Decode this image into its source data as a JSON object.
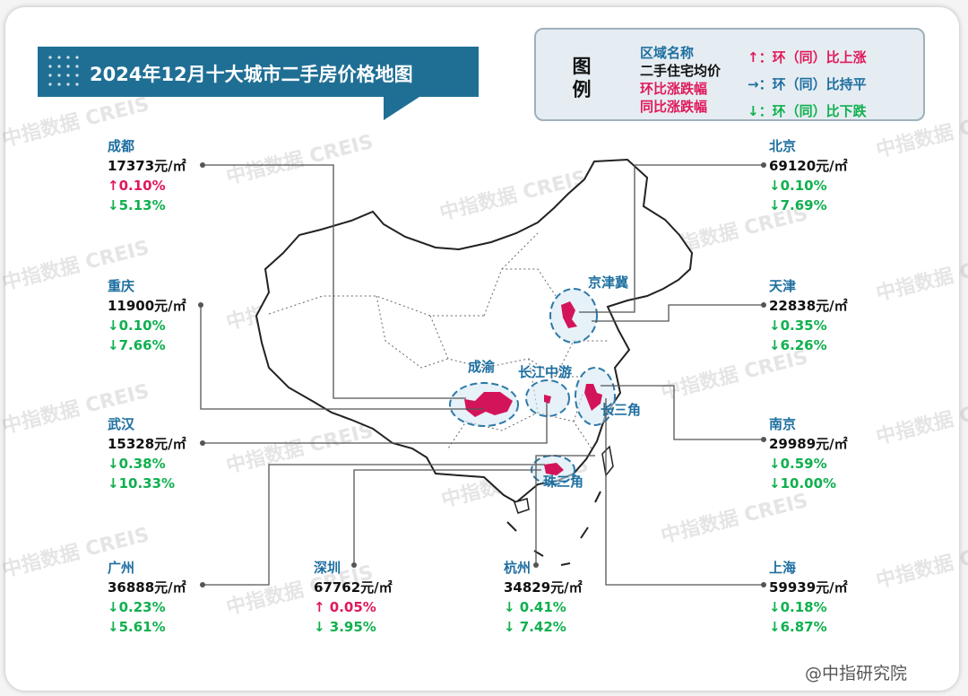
{
  "title": "2024年12月十大城市二手房价格地图",
  "legend": {
    "heading": "图例",
    "region_name": "区域名称",
    "avg_price": "二手住宅均价",
    "mom_change": "环比涨跌幅",
    "yoy_change": "同比涨跌幅",
    "up": "↑：环（同）比上涨",
    "flat": "→：环（同）比持平",
    "down": "↓：环（同）比下跌"
  },
  "regions": [
    "京津冀",
    "成渝",
    "长江中游",
    "长三角",
    "珠三角"
  ],
  "watermark": "中指数据 CREIS",
  "footer": "@中指研究院",
  "colors": {
    "accent": "#1e6fa0",
    "up": "#e0195a",
    "down": "#10b04f",
    "banner": "#1f6f95"
  },
  "cities": {
    "chengdu": {
      "name": "成都",
      "price": "17373元/㎡",
      "mom": "↑0.10%",
      "yoy": "↓5.13%"
    },
    "chongqing": {
      "name": "重庆",
      "price": "11900元/㎡",
      "mom": "↓0.10%",
      "yoy": "↓7.66%"
    },
    "wuhan": {
      "name": "武汉",
      "price": "15328元/㎡",
      "mom": "↓0.38%",
      "yoy": "↓10.33%"
    },
    "guangzhou": {
      "name": "广州",
      "price": "36888元/㎡",
      "mom": "↓0.23%",
      "yoy": "↓5.61%"
    },
    "shenzhen": {
      "name": "深圳",
      "price": "67762元/㎡",
      "mom": "↑ 0.05%",
      "yoy": "↓ 3.95%"
    },
    "hangzhou": {
      "name": "杭州",
      "price": "34829元/㎡",
      "mom": "↓ 0.41%",
      "yoy": "↓ 7.42%"
    },
    "beijing": {
      "name": "北京",
      "price": "69120元/㎡",
      "mom": "↓0.10%",
      "yoy": "↓7.69%"
    },
    "tianjin": {
      "name": "天津",
      "price": "22838元/㎡",
      "mom": "↓0.35%",
      "yoy": "↓6.26%"
    },
    "nanjing": {
      "name": "南京",
      "price": "29989元/㎡",
      "mom": "↓0.59%",
      "yoy": "↓10.00%"
    },
    "shanghai": {
      "name": "上海",
      "price": "59939元/㎡",
      "mom": "↓0.18%",
      "yoy": "↓6.87%"
    }
  }
}
